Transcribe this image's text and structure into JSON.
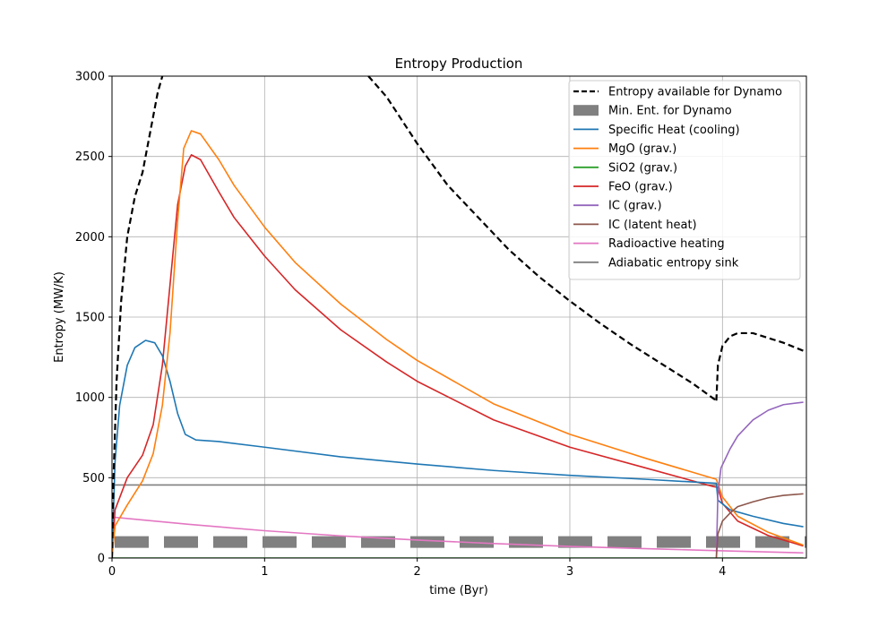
{
  "chart_data": {
    "type": "line",
    "title": "Entropy Production",
    "xlabel": "time (Byr)",
    "ylabel": "Entropy (MW/K)",
    "xlim": [
      0,
      4.55
    ],
    "ylim": [
      0,
      3000
    ],
    "xticks": [
      0,
      1,
      2,
      3,
      4
    ],
    "yticks": [
      0,
      500,
      1000,
      1500,
      2000,
      2500,
      3000
    ],
    "grid": true,
    "legend_position": "top-right",
    "series": [
      {
        "name": "Entropy available for Dynamo",
        "color": "#000000",
        "style": "dashed",
        "segments": [
          [
            [
              0,
              0
            ],
            [
              0.01,
              500
            ],
            [
              0.03,
              1100
            ],
            [
              0.06,
              1600
            ],
            [
              0.1,
              2000
            ],
            [
              0.15,
              2250
            ],
            [
              0.2,
              2400
            ],
            [
              0.25,
              2650
            ],
            [
              0.3,
              2900
            ],
            [
              0.33,
              3000
            ]
          ],
          [
            [
              1.68,
              3000
            ],
            [
              1.8,
              2870
            ],
            [
              2.0,
              2580
            ],
            [
              2.2,
              2320
            ],
            [
              2.4,
              2120
            ],
            [
              2.6,
              1920
            ],
            [
              2.8,
              1750
            ],
            [
              3.0,
              1600
            ],
            [
              3.2,
              1460
            ],
            [
              3.4,
              1330
            ],
            [
              3.6,
              1210
            ],
            [
              3.8,
              1090
            ],
            [
              3.96,
              980
            ]
          ],
          [
            [
              3.96,
              980
            ],
            [
              3.97,
              1200
            ],
            [
              4.0,
              1320
            ],
            [
              4.05,
              1380
            ],
            [
              4.1,
              1400
            ],
            [
              4.2,
              1400
            ],
            [
              4.3,
              1370
            ],
            [
              4.4,
              1340
            ],
            [
              4.53,
              1290
            ]
          ]
        ]
      },
      {
        "name": "Min. Ent. for Dynamo",
        "color": "#808080",
        "style": "thick-dashed",
        "segments": [
          [
            [
              0,
              100
            ],
            [
              4.55,
              100
            ]
          ]
        ]
      },
      {
        "name": "Specific Heat (cooling)",
        "color": "#1f77b4",
        "style": "solid",
        "segments": [
          [
            [
              0,
              0
            ],
            [
              0.02,
              600
            ],
            [
              0.05,
              950
            ],
            [
              0.1,
              1200
            ],
            [
              0.15,
              1310
            ],
            [
              0.22,
              1355
            ],
            [
              0.28,
              1340
            ],
            [
              0.33,
              1260
            ],
            [
              0.38,
              1100
            ],
            [
              0.43,
              900
            ],
            [
              0.48,
              770
            ],
            [
              0.55,
              735
            ],
            [
              0.7,
              725
            ],
            [
              1.0,
              690
            ],
            [
              1.5,
              630
            ],
            [
              2.0,
              585
            ],
            [
              2.5,
              545
            ],
            [
              3.0,
              515
            ],
            [
              3.5,
              490
            ],
            [
              3.96,
              465
            ],
            [
              3.97,
              360
            ],
            [
              4.05,
              300
            ],
            [
              4.2,
              260
            ],
            [
              4.4,
              215
            ],
            [
              4.53,
              195
            ]
          ]
        ]
      },
      {
        "name": "MgO (grav.)",
        "color": "#ff7f0e",
        "style": "solid",
        "segments": [
          [
            [
              0,
              0
            ],
            [
              0.02,
              200
            ],
            [
              0.1,
              330
            ],
            [
              0.2,
              480
            ],
            [
              0.27,
              650
            ],
            [
              0.33,
              950
            ],
            [
              0.38,
              1400
            ],
            [
              0.43,
              2100
            ],
            [
              0.47,
              2550
            ],
            [
              0.52,
              2660
            ],
            [
              0.58,
              2640
            ],
            [
              0.7,
              2480
            ],
            [
              0.8,
              2320
            ],
            [
              1.0,
              2060
            ],
            [
              1.2,
              1840
            ],
            [
              1.5,
              1580
            ],
            [
              1.8,
              1360
            ],
            [
              2.0,
              1230
            ],
            [
              2.5,
              960
            ],
            [
              3.0,
              770
            ],
            [
              3.5,
              620
            ],
            [
              3.96,
              490
            ],
            [
              4.0,
              380
            ],
            [
              4.1,
              260
            ],
            [
              4.3,
              160
            ],
            [
              4.53,
              80
            ]
          ]
        ]
      },
      {
        "name": "SiO2 (grav.)",
        "color": "#2ca02c",
        "style": "solid",
        "segments": [
          [
            [
              0,
              0
            ],
            [
              4.53,
              0
            ]
          ]
        ]
      },
      {
        "name": "FeO (grav.)",
        "color": "#d62728",
        "style": "solid",
        "segments": [
          [
            [
              0,
              0
            ],
            [
              0.02,
              300
            ],
            [
              0.1,
              500
            ],
            [
              0.2,
              640
            ],
            [
              0.27,
              830
            ],
            [
              0.33,
              1200
            ],
            [
              0.38,
              1700
            ],
            [
              0.43,
              2200
            ],
            [
              0.48,
              2440
            ],
            [
              0.52,
              2510
            ],
            [
              0.58,
              2480
            ],
            [
              0.7,
              2280
            ],
            [
              0.8,
              2120
            ],
            [
              1.0,
              1880
            ],
            [
              1.2,
              1670
            ],
            [
              1.5,
              1420
            ],
            [
              1.8,
              1220
            ],
            [
              2.0,
              1100
            ],
            [
              2.5,
              860
            ],
            [
              3.0,
              690
            ],
            [
              3.5,
              560
            ],
            [
              3.94,
              445
            ],
            [
              3.97,
              440
            ],
            [
              4.0,
              340
            ],
            [
              4.1,
              230
            ],
            [
              4.3,
              140
            ],
            [
              4.53,
              75
            ]
          ]
        ]
      },
      {
        "name": "IC (grav.)",
        "color": "#9467bd",
        "style": "solid",
        "segments": [
          [
            [
              3.96,
              0
            ],
            [
              3.97,
              400
            ],
            [
              3.99,
              560
            ],
            [
              4.05,
              680
            ],
            [
              4.1,
              760
            ],
            [
              4.2,
              860
            ],
            [
              4.3,
              920
            ],
            [
              4.4,
              955
            ],
            [
              4.53,
              970
            ]
          ]
        ]
      },
      {
        "name": "IC (latent heat)",
        "color": "#8c564b",
        "style": "solid",
        "segments": [
          [
            [
              3.96,
              0
            ],
            [
              3.97,
              150
            ],
            [
              4.0,
              230
            ],
            [
              4.05,
              280
            ],
            [
              4.1,
              320
            ],
            [
              4.2,
              350
            ],
            [
              4.3,
              375
            ],
            [
              4.4,
              390
            ],
            [
              4.53,
              400
            ]
          ]
        ]
      },
      {
        "name": "Radioactive heating",
        "color": "#e377c2",
        "style": "solid",
        "segments": [
          [
            [
              0,
              255
            ],
            [
              0.5,
              210
            ],
            [
              1.0,
              170
            ],
            [
              1.5,
              138
            ],
            [
              2.0,
              112
            ],
            [
              2.5,
              90
            ],
            [
              3.0,
              72
            ],
            [
              3.5,
              58
            ],
            [
              4.0,
              45
            ],
            [
              4.53,
              32
            ]
          ]
        ]
      },
      {
        "name": "Adiabatic entropy sink",
        "color": "#7f7f7f",
        "style": "solid",
        "segments": [
          [
            [
              0,
              455
            ],
            [
              4.55,
              455
            ]
          ]
        ]
      }
    ]
  }
}
